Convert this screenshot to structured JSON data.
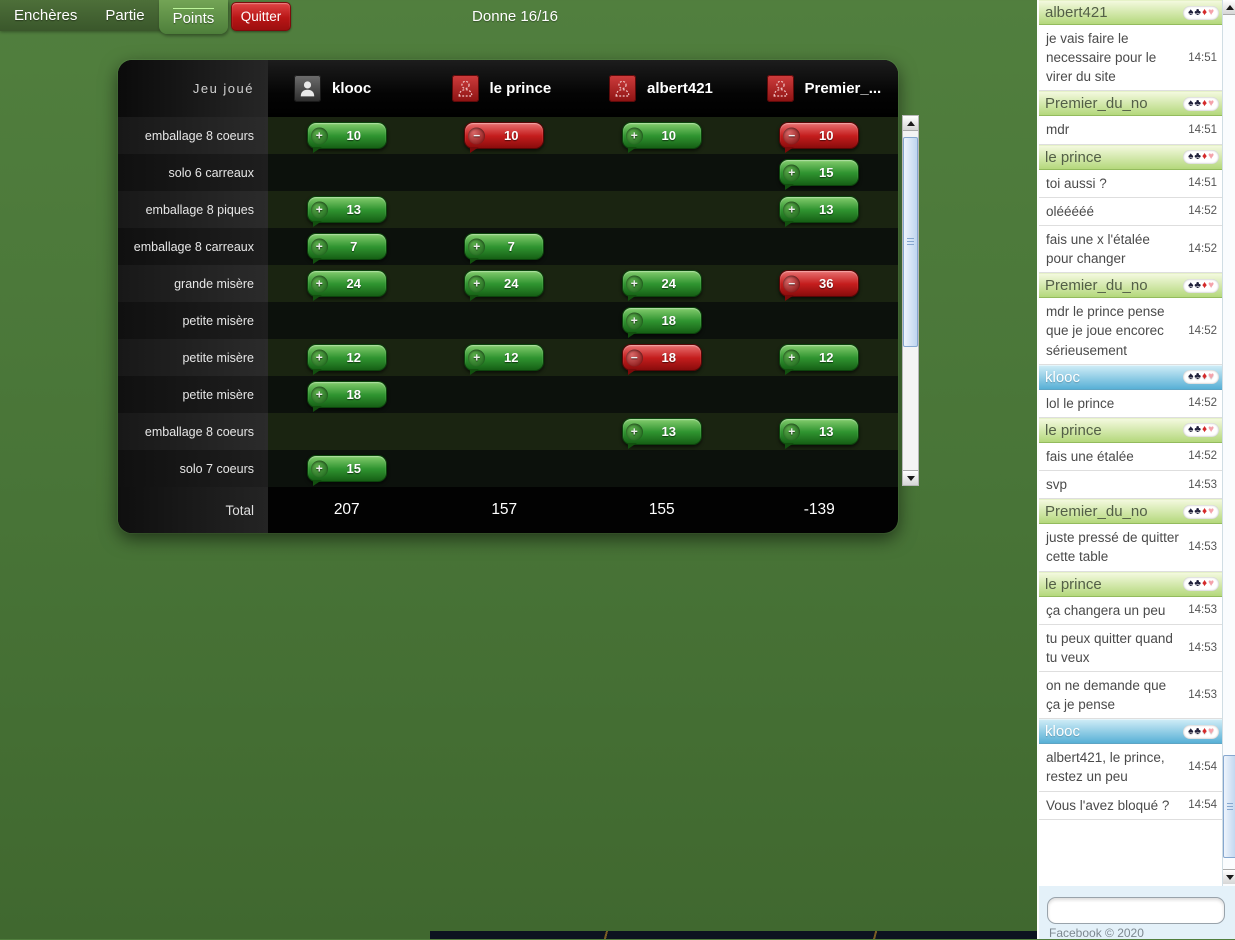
{
  "menu": {
    "tabs": [
      "Enchères",
      "Partie",
      "Points"
    ],
    "active_tab": "Points",
    "quit_label": "Quitter"
  },
  "header": {
    "deal_counter": "Donne 16/16"
  },
  "score_table": {
    "corner_label": "Jeu joué",
    "players": [
      {
        "name": "klooc",
        "avatar": "self"
      },
      {
        "name": "le prince",
        "avatar": "opponent"
      },
      {
        "name": "albert421",
        "avatar": "opponent"
      },
      {
        "name": "Premier_...",
        "avatar": "opponent"
      }
    ],
    "rows": [
      {
        "label": "emballage 8 coeurs",
        "scores": [
          {
            "sign": "+",
            "value": 10
          },
          {
            "sign": "-",
            "value": 10
          },
          {
            "sign": "+",
            "value": 10
          },
          {
            "sign": "-",
            "value": 10
          }
        ]
      },
      {
        "label": "solo 6 carreaux",
        "scores": [
          null,
          null,
          null,
          {
            "sign": "+",
            "value": 15
          }
        ]
      },
      {
        "label": "emballage 8 piques",
        "scores": [
          {
            "sign": "+",
            "value": 13
          },
          null,
          null,
          {
            "sign": "+",
            "value": 13
          }
        ]
      },
      {
        "label": "emballage 8 carreaux",
        "scores": [
          {
            "sign": "+",
            "value": 7
          },
          {
            "sign": "+",
            "value": 7
          },
          null,
          null
        ]
      },
      {
        "label": "grande misère",
        "scores": [
          {
            "sign": "+",
            "value": 24
          },
          {
            "sign": "+",
            "value": 24
          },
          {
            "sign": "+",
            "value": 24
          },
          {
            "sign": "-",
            "value": 36
          }
        ]
      },
      {
        "label": "petite misère",
        "scores": [
          null,
          null,
          {
            "sign": "+",
            "value": 18
          },
          null
        ]
      },
      {
        "label": "petite misère",
        "scores": [
          {
            "sign": "+",
            "value": 12
          },
          {
            "sign": "+",
            "value": 12
          },
          {
            "sign": "-",
            "value": 18
          },
          {
            "sign": "+",
            "value": 12
          }
        ]
      },
      {
        "label": "petite misère",
        "scores": [
          {
            "sign": "+",
            "value": 18
          },
          null,
          null,
          null
        ]
      },
      {
        "label": "emballage 8 coeurs",
        "scores": [
          null,
          null,
          {
            "sign": "+",
            "value": 13
          },
          {
            "sign": "+",
            "value": 13
          }
        ]
      },
      {
        "label": "solo 7 coeurs",
        "scores": [
          {
            "sign": "+",
            "value": 15
          },
          null,
          null,
          null
        ]
      }
    ],
    "total_label": "Total",
    "totals": [
      "207",
      "157",
      "155",
      "-139"
    ],
    "colors": {
      "positive_badge": "#2f9430",
      "negative_badge": "#c41d1d"
    }
  },
  "chat": {
    "suits": [
      {
        "name": "spade",
        "glyph": "♠",
        "color": "#20203a"
      },
      {
        "name": "club",
        "glyph": "♣",
        "color": "#20203a"
      },
      {
        "name": "diamond",
        "glyph": "♦",
        "color": "#d42a2a"
      },
      {
        "name": "heart",
        "glyph": "♥",
        "color": "#f4a2aa"
      }
    ],
    "groups": [
      {
        "user": "albert421",
        "style": "green",
        "messages": [
          {
            "text": "je vais faire le necessaire pour le virer du site",
            "time": "14:51"
          }
        ]
      },
      {
        "user": "Premier_du_no",
        "style": "green",
        "messages": [
          {
            "text": "mdr",
            "time": "14:51"
          }
        ]
      },
      {
        "user": "le prince",
        "style": "green",
        "messages": [
          {
            "text": "toi aussi ?",
            "time": "14:51"
          },
          {
            "text": "olééééé",
            "time": "14:52"
          },
          {
            "text": "fais une x l'étalée pour changer",
            "time": "14:52"
          }
        ]
      },
      {
        "user": "Premier_du_no",
        "style": "green",
        "messages": [
          {
            "text": "mdr le prince pense que je joue encorec sérieusement",
            "time": "14:52"
          }
        ]
      },
      {
        "user": "klooc",
        "style": "blue",
        "messages": [
          {
            "text": "lol le prince",
            "time": "14:52"
          }
        ]
      },
      {
        "user": "le prince",
        "style": "green",
        "messages": [
          {
            "text": "fais une étalée",
            "time": "14:52"
          },
          {
            "text": "svp",
            "time": "14:53"
          }
        ]
      },
      {
        "user": "Premier_du_no",
        "style": "green",
        "messages": [
          {
            "text": "juste pressé de quitter cette table",
            "time": "14:53"
          }
        ]
      },
      {
        "user": "le prince",
        "style": "green",
        "messages": [
          {
            "text": "ça changera un peu",
            "time": "14:53"
          },
          {
            "text": "tu peux quitter quand tu veux",
            "time": "14:53"
          },
          {
            "text": "on ne demande que ça je pense",
            "time": "14:53"
          }
        ]
      },
      {
        "user": "klooc",
        "style": "blue",
        "messages": [
          {
            "text": "albert421, le prince, restez un peu",
            "time": "14:54"
          },
          {
            "text": "Vous l'avez bloqué ?",
            "time": "14:54"
          }
        ]
      }
    ],
    "input_value": "",
    "footer": "Facebook © 2020",
    "header_colors": {
      "green": "#b4d87c",
      "blue": "#58b0d6"
    }
  }
}
